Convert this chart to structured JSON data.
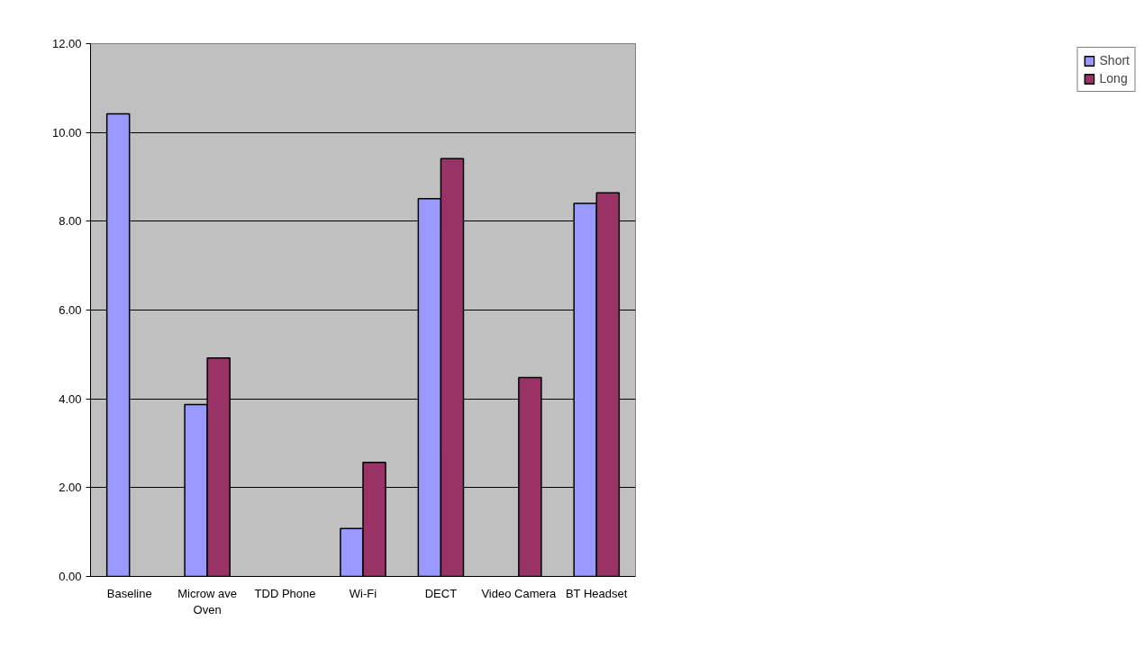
{
  "chart_data": {
    "type": "bar",
    "categories": [
      "Baseline",
      "Microw ave Oven",
      "TDD Phone",
      "Wi-Fi",
      "DECT",
      "Video Camera",
      "BT Headset"
    ],
    "series": [
      {
        "name": "Short",
        "color": "#9999ff",
        "values": [
          10.42,
          3.87,
          null,
          1.08,
          8.51,
          null,
          8.4
        ]
      },
      {
        "name": "Long",
        "color": "#993366",
        "values": [
          null,
          4.92,
          null,
          2.57,
          9.41,
          4.48,
          8.64
        ]
      }
    ],
    "ylim": [
      0,
      12
    ],
    "yticks": [
      {
        "value": 0,
        "label": "0.00"
      },
      {
        "value": 2,
        "label": "2.00"
      },
      {
        "value": 4,
        "label": "4.00"
      },
      {
        "value": 6,
        "label": "6.00"
      },
      {
        "value": 8,
        "label": "8.00"
      },
      {
        "value": 10,
        "label": "10.00"
      },
      {
        "value": 12,
        "label": "12.00"
      }
    ],
    "grid": "y",
    "legend": "right"
  }
}
